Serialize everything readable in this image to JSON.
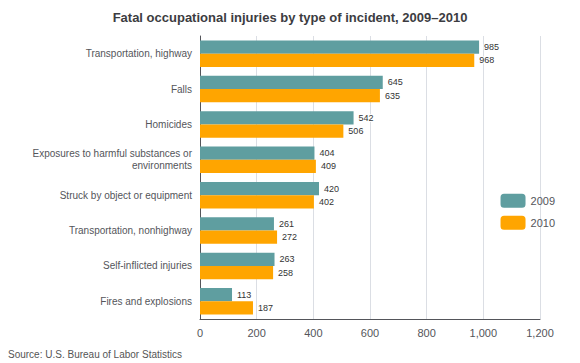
{
  "chart_data": {
    "type": "bar",
    "orientation": "horizontal",
    "title": "Fatal occupational injuries by type of incident, 2009–2010",
    "categories": [
      "Transportation, highway",
      "Falls",
      "Homicides",
      "Exposures to harmful substances or\nenvironments",
      "Struck by object or equipment",
      "Transportation, nonhighway",
      "Self-inflicted injuries",
      "Fires and explosions"
    ],
    "series": [
      {
        "name": "2009",
        "color": "#5f9ea0",
        "values": [
          985,
          645,
          542,
          404,
          420,
          261,
          263,
          113
        ]
      },
      {
        "name": "2010",
        "color": "#ffa500",
        "values": [
          968,
          635,
          506,
          409,
          402,
          272,
          258,
          187
        ]
      }
    ],
    "xlim": [
      0,
      1200
    ],
    "xticks": [
      0,
      200,
      400,
      600,
      800,
      {
        "value": 1000,
        "label": "1,000"
      },
      {
        "value": 1200,
        "label": "1,200"
      }
    ],
    "grid": true,
    "legend": "right",
    "data_labels": true,
    "annotations": [
      "Source: U.S. Bureau of Labor Statistics"
    ]
  }
}
